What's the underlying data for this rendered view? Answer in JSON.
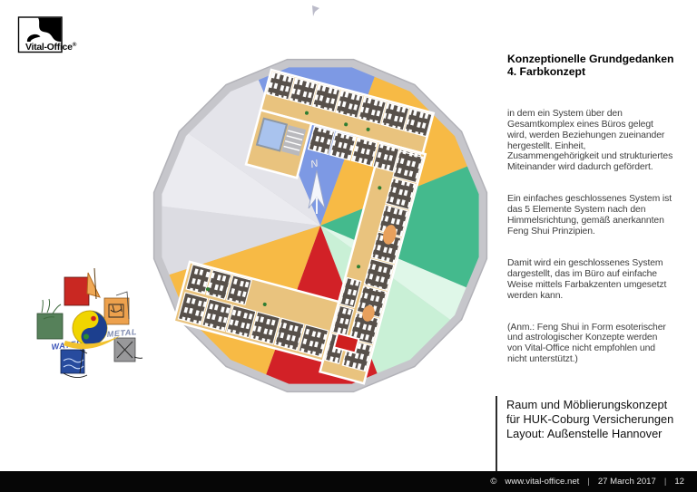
{
  "logo": {
    "brand": "Vital-Office",
    "registered": "®"
  },
  "concept": {
    "title_lines": [
      "Konzeptionelle Grundgedanken",
      "4. Farbkonzept"
    ],
    "paragraphs": [
      [
        "in dem ein System über den",
        "Gesamtkomplex eines Büros gelegt",
        "wird, werden Beziehungen zueinander",
        "hergestellt. Einheit,",
        "Zusammengehörigkeit und strukturiertes",
        "Miteinander wird dadurch gefördert."
      ],
      [
        "Ein einfaches geschlossenes System ist",
        "das 5 Elemente System nach den",
        "Himmelsrichtung, gemäß anerkannten",
        "Feng Shui Prinzipien."
      ],
      [
        "Damit wird ein geschlossenes System",
        "dargestellt, das im Büro auf einfache",
        "Weise mittels Farbakzenten umgesetzt",
        "werden kann."
      ],
      [
        "(Anm.: Feng Shui in Form esoterischer",
        "und astrologischer Konzepte werden",
        "von Vital-Office nicht empfohlen und",
        "nicht unterstützt.)"
      ]
    ]
  },
  "project": {
    "lines": [
      "Raum und Möblierungskonzept",
      "für HUK-Coburg Versicherungen",
      "Layout: Außenstelle Hannover"
    ]
  },
  "footer": {
    "copyright": "©",
    "url": "www.vital-office.net",
    "separator": "|",
    "date": "27 March 2017",
    "page": "12"
  },
  "diagram": {
    "type": "feng-shui-color-wheel-floorplan",
    "north_label": "N",
    "rim_color": "#c6c6cb",
    "rim_edge_color": "#b2b2b8",
    "segments": [
      {
        "name": "north-blue",
        "from": 337,
        "to": 20,
        "color": "#7d99e4"
      },
      {
        "name": "northeast-orange",
        "from": 20,
        "to": 68,
        "color": "#f7ba45"
      },
      {
        "name": "east-teal",
        "from": 68,
        "to": 113,
        "color": "#44ba8d"
      },
      {
        "name": "southeast-mint-light",
        "from": 113,
        "to": 126,
        "color": "#dff7e8"
      },
      {
        "name": "southeast-mint",
        "from": 126,
        "to": 159,
        "color": "#c9f0d6"
      },
      {
        "name": "south-red",
        "from": 159,
        "to": 200,
        "color": "#d22127"
      },
      {
        "name": "southwest-orange",
        "from": 200,
        "to": 252,
        "color": "#f7ba45"
      },
      {
        "name": "west-gray",
        "from": 252,
        "to": 277,
        "color": "#dcdce2"
      },
      {
        "name": "northwest-gray",
        "from": 277,
        "to": 305,
        "color": "#ebebf0"
      },
      {
        "name": "nnw-gray",
        "from": 305,
        "to": 337,
        "color": "#e4e4ea"
      }
    ],
    "building_colors": {
      "corridor": "#e9c37e",
      "room": "#57504a",
      "furniture": "#ffffff",
      "wall": "#ffffff",
      "atrium_blue": "#a9c3ee",
      "stair_gray": "#b9b9bd",
      "accent_red": "#cf1f1f",
      "table_orange": "#e8a05c",
      "plant_green": "#2e7d32"
    }
  },
  "elements_wheel": {
    "labels": {
      "water": "WATER",
      "metal": "METAL"
    },
    "colors": {
      "fire_red": "#c92822",
      "earth_orange": "#eda14d",
      "metal_gray": "#98989a",
      "water_blue": "#274b9e",
      "wood_green": "#56815a",
      "yinyang_yellow": "#f0d500",
      "yinyang_blue": "#1c3f8e",
      "swoosh_yellow": "#f2c22e"
    }
  }
}
